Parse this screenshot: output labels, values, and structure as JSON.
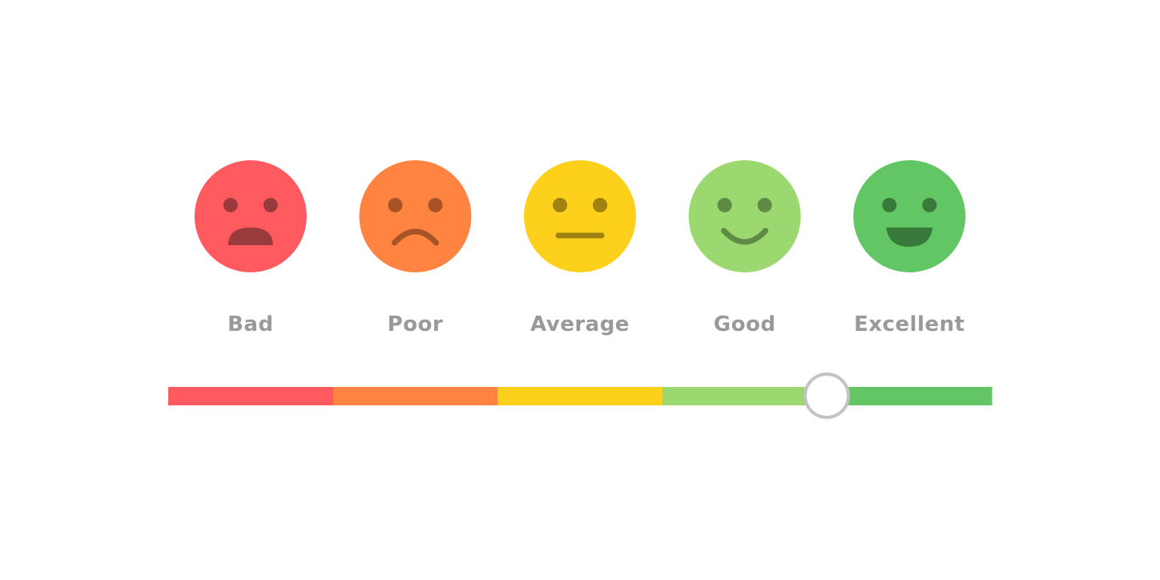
{
  "ratings": [
    {
      "label": "Bad",
      "color": "#fe5a5f",
      "feature_color": "#993a3d"
    },
    {
      "label": "Poor",
      "color": "#ff8442",
      "feature_color": "#a55327"
    },
    {
      "label": "Average",
      "color": "#fdd01c",
      "feature_color": "#9f820f"
    },
    {
      "label": "Good",
      "color": "#9bd86f",
      "feature_color": "#5f8a44"
    },
    {
      "label": "Excellent",
      "color": "#62c664",
      "feature_color": "#377a3a"
    }
  ]
}
